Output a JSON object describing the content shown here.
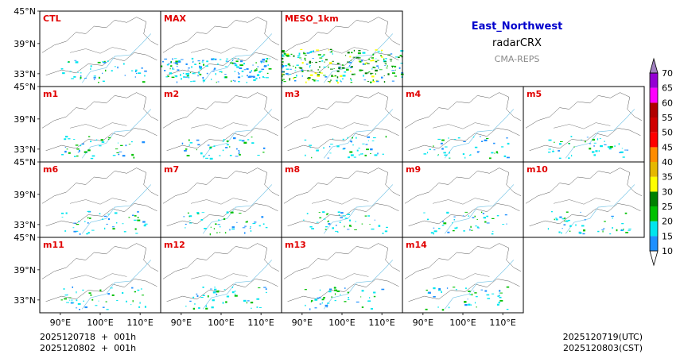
{
  "header": {
    "region": "East_Northwest",
    "variable": "radarCRX",
    "system": "CMA-REPS"
  },
  "colors": {
    "region": "#0000cc",
    "system": "#888888",
    "panel_label": "#e00000",
    "border": "#555555",
    "river": "#7ec8e8"
  },
  "panels": [
    {
      "label": "CTL",
      "row": 0,
      "col": 0
    },
    {
      "label": "MAX",
      "row": 0,
      "col": 1
    },
    {
      "label": "MESO_1km",
      "row": 0,
      "col": 2
    },
    {
      "label": "m1",
      "row": 1,
      "col": 0
    },
    {
      "label": "m2",
      "row": 1,
      "col": 1
    },
    {
      "label": "m3",
      "row": 1,
      "col": 2
    },
    {
      "label": "m4",
      "row": 1,
      "col": 3
    },
    {
      "label": "m5",
      "row": 1,
      "col": 4
    },
    {
      "label": "m6",
      "row": 2,
      "col": 0
    },
    {
      "label": "m7",
      "row": 2,
      "col": 1
    },
    {
      "label": "m8",
      "row": 2,
      "col": 2
    },
    {
      "label": "m9",
      "row": 2,
      "col": 3
    },
    {
      "label": "m10",
      "row": 2,
      "col": 4
    },
    {
      "label": "m11",
      "row": 3,
      "col": 0
    },
    {
      "label": "m12",
      "row": 3,
      "col": 1
    },
    {
      "label": "m13",
      "row": 3,
      "col": 2
    },
    {
      "label": "m14",
      "row": 3,
      "col": 3
    }
  ],
  "axes": {
    "lat_ticks": [
      "45°N",
      "39°N",
      "33°N"
    ],
    "lon_ticks": [
      "90°E",
      "100°E",
      "110°E"
    ]
  },
  "colorbar": {
    "levels": [
      "10",
      "15",
      "20",
      "25",
      "30",
      "35",
      "40",
      "45",
      "50",
      "55",
      "60",
      "65",
      "70"
    ],
    "colors": [
      "#1e90ff",
      "#00e5ee",
      "#00c000",
      "#008000",
      "#ffff00",
      "#e6b800",
      "#ff8c00",
      "#ff0000",
      "#d00000",
      "#b00000",
      "#ff00ff",
      "#9400d3",
      "#a080c0"
    ]
  },
  "footer": {
    "init_utc": "2025120718  +  001h",
    "init_cst": "2025120802  +  001h",
    "valid_utc": "2025120719(UTC)",
    "valid_cst": "2025120803(CST)"
  }
}
